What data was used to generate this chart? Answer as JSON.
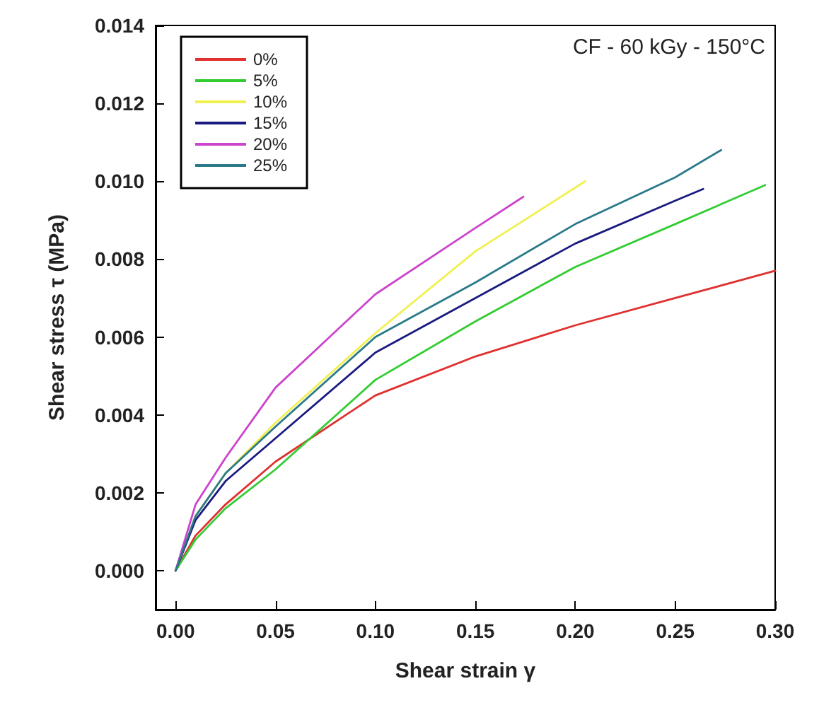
{
  "chart_data": {
    "type": "line",
    "xlabel": "Shear strain γ",
    "ylabel": "Shear stress τ (MPa)",
    "annotations": [
      "CF - 60 kGy - 150°C"
    ],
    "xlim": [
      -0.01,
      0.3
    ],
    "xticks": [
      {
        "value": 0,
        "label": "0.00"
      },
      {
        "value": 0.05,
        "label": "0.05"
      },
      {
        "value": 0.1,
        "label": "0.10"
      },
      {
        "value": 0.15,
        "label": "0.15"
      },
      {
        "value": 0.2,
        "label": "0.20"
      },
      {
        "value": 0.25,
        "label": "0.25"
      },
      {
        "value": 0.3,
        "label": "0.30"
      }
    ],
    "ylim": [
      -0.001,
      0.014
    ],
    "yticks": [
      {
        "value": 0,
        "label": "0.000"
      },
      {
        "value": 0.002,
        "label": "0.002"
      },
      {
        "value": 0.004,
        "label": "0.004"
      },
      {
        "value": 0.006,
        "label": "0.006"
      },
      {
        "value": 0.008,
        "label": "0.008"
      },
      {
        "value": 0.01,
        "label": "0.010"
      },
      {
        "value": 0.012,
        "label": "0.012"
      },
      {
        "value": 0.014,
        "label": "0.014"
      }
    ],
    "grid": false,
    "legend": "top left",
    "marker": "none",
    "line_style": "solid",
    "series": [
      {
        "name": "0%",
        "color": "#e03030",
        "x": [
          0,
          0.01,
          0.025,
          0.05,
          0.1,
          0.15,
          0.2,
          0.25,
          0.3
        ],
        "values": [
          0,
          0.0009,
          0.0017,
          0.0028,
          0.0045,
          0.0055,
          0.0063,
          0.007,
          0.0077
        ]
      },
      {
        "name": "5%",
        "color": "#33cc33",
        "x": [
          0,
          0.01,
          0.025,
          0.05,
          0.1,
          0.15,
          0.2,
          0.25,
          0.295
        ],
        "values": [
          0,
          0.0008,
          0.0016,
          0.0026,
          0.0049,
          0.0064,
          0.0078,
          0.0089,
          0.0099
        ]
      },
      {
        "name": "10%",
        "color": "#f0f050",
        "x": [
          0,
          0.01,
          0.025,
          0.05,
          0.1,
          0.15,
          0.205
        ],
        "values": [
          0,
          0.0014,
          0.0025,
          0.0038,
          0.0061,
          0.0082,
          0.01
        ]
      },
      {
        "name": "15%",
        "color": "#1a1a80",
        "x": [
          0,
          0.01,
          0.025,
          0.05,
          0.1,
          0.15,
          0.2,
          0.25,
          0.264
        ],
        "values": [
          0,
          0.0013,
          0.0023,
          0.0034,
          0.0056,
          0.007,
          0.0084,
          0.0095,
          0.0098
        ]
      },
      {
        "name": "20%",
        "color": "#cc44cc",
        "x": [
          0,
          0.01,
          0.025,
          0.05,
          0.1,
          0.15,
          0.174
        ],
        "values": [
          0,
          0.0017,
          0.0029,
          0.0047,
          0.0071,
          0.0088,
          0.0096
        ]
      },
      {
        "name": "25%",
        "color": "#2a7a8a",
        "x": [
          0,
          0.01,
          0.025,
          0.05,
          0.1,
          0.15,
          0.2,
          0.25,
          0.273
        ],
        "values": [
          0,
          0.0014,
          0.0025,
          0.0037,
          0.006,
          0.0074,
          0.0089,
          0.0101,
          0.0108
        ]
      }
    ]
  }
}
